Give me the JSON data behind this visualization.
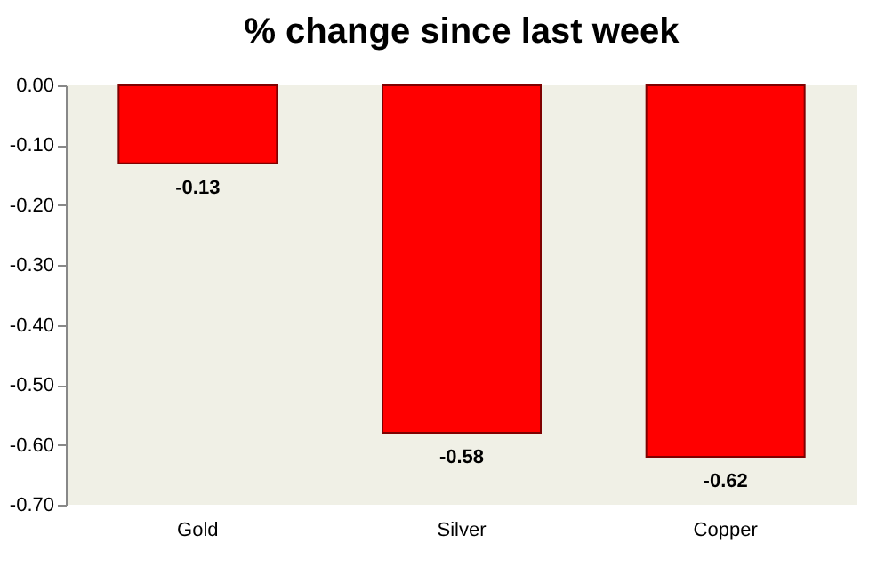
{
  "chart_data": {
    "type": "bar",
    "title": "% change since last week",
    "categories": [
      "Gold",
      "Silver",
      "Copper"
    ],
    "values": [
      -0.13,
      -0.58,
      -0.62
    ],
    "color": "#ff0000",
    "ylim": [
      -0.7,
      0
    ],
    "yticks": [
      {
        "value": 0,
        "label": "0.00"
      },
      {
        "value": -0.1,
        "label": "-0.10"
      },
      {
        "value": -0.2,
        "label": "-0.20"
      },
      {
        "value": -0.3,
        "label": "-0.30"
      },
      {
        "value": -0.4,
        "label": "-0.40"
      },
      {
        "value": -0.5,
        "label": "-0.50"
      },
      {
        "value": -0.6,
        "label": "-0.60"
      },
      {
        "value": -0.7,
        "label": "-0.70"
      }
    ],
    "data_labels": true,
    "grid": false
  }
}
